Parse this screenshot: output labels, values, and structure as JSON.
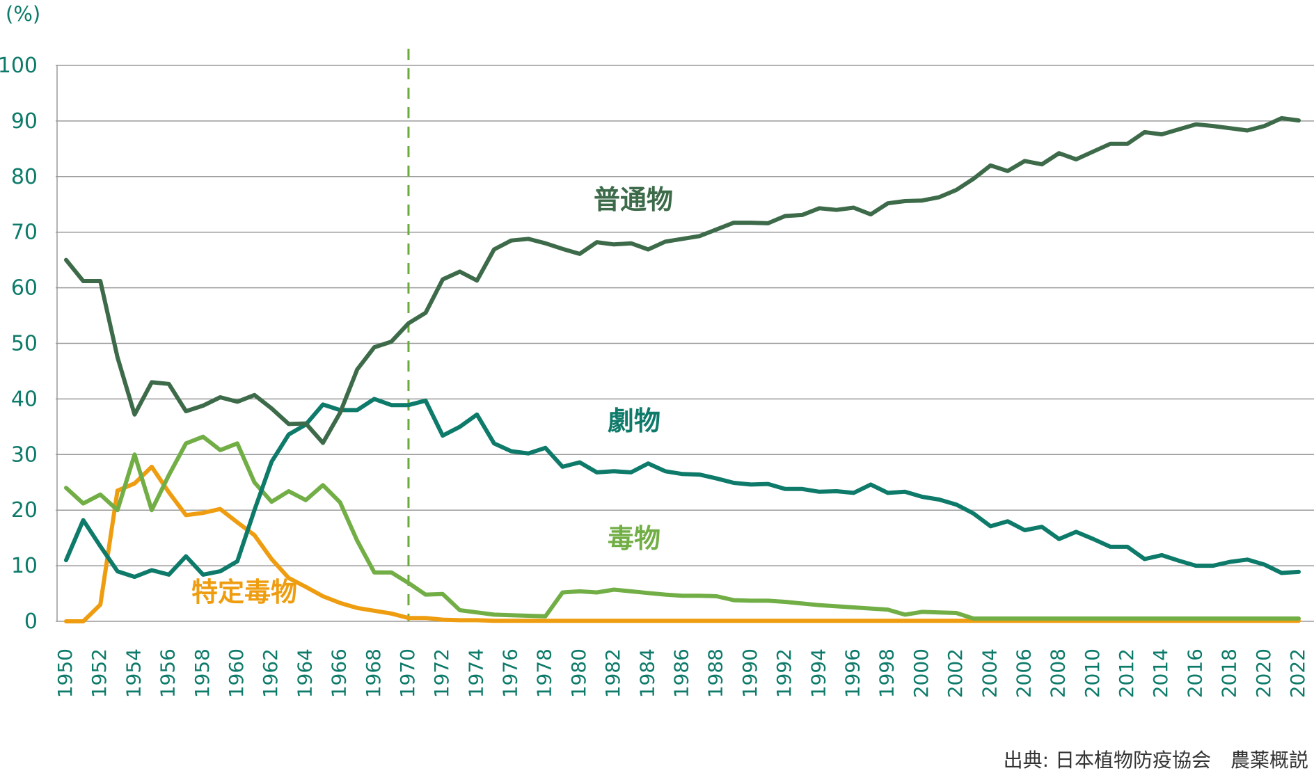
{
  "chart_data": {
    "type": "line",
    "unit_label": "(%)",
    "ylim": [
      0,
      100
    ],
    "yticks": [
      0,
      10,
      20,
      30,
      40,
      50,
      60,
      70,
      80,
      90,
      100
    ],
    "grid": "horizontal",
    "xticks": [
      1950,
      1952,
      1954,
      1956,
      1958,
      1960,
      1962,
      1964,
      1966,
      1968,
      1970,
      1972,
      1974,
      1976,
      1978,
      1980,
      1982,
      1984,
      1986,
      1988,
      1990,
      1992,
      1994,
      1996,
      1998,
      2000,
      2002,
      2004,
      2006,
      2008,
      2010,
      2012,
      2014,
      2016,
      2018,
      2020,
      2022
    ],
    "reference_line": {
      "x": 1970,
      "style": "dashed",
      "color": "#6aaa3a"
    },
    "x": [
      1950,
      1951,
      1952,
      1953,
      1954,
      1955,
      1956,
      1957,
      1958,
      1959,
      1960,
      1961,
      1962,
      1963,
      1964,
      1965,
      1966,
      1967,
      1968,
      1969,
      1970,
      1971,
      1972,
      1973,
      1974,
      1975,
      1976,
      1977,
      1978,
      1979,
      1980,
      1981,
      1982,
      1983,
      1984,
      1985,
      1986,
      1987,
      1988,
      1989,
      1990,
      1991,
      1992,
      1993,
      1994,
      1995,
      1996,
      1997,
      1998,
      1999,
      2000,
      2001,
      2002,
      2003,
      2004,
      2005,
      2006,
      2007,
      2008,
      2009,
      2010,
      2011,
      2012,
      2013,
      2014,
      2015,
      2016,
      2017,
      2018,
      2019,
      2020,
      2021,
      2022
    ],
    "series": [
      {
        "name": "普通物",
        "color": "#3d6b4a",
        "values": [
          65,
          61.2,
          61.2,
          47.5,
          37.2,
          43,
          42.7,
          37.8,
          38.8,
          40.3,
          39.5,
          40.7,
          38.3,
          35.5,
          35.6,
          32.1,
          37.5,
          45.3,
          49.3,
          50.3,
          53.6,
          55.5,
          61.5,
          62.9,
          61.3,
          66.9,
          68.5,
          68.8,
          68,
          67,
          66.1,
          68.2,
          67.8,
          68,
          66.9,
          68.3,
          68.8,
          69.3,
          70.5,
          71.7,
          71.7,
          71.6,
          72.9,
          73.1,
          74.3,
          74,
          74.4,
          73.2,
          75.2,
          75.6,
          75.7,
          76.3,
          77.6,
          79.6,
          82,
          81,
          82.8,
          82.2,
          84.2,
          83.1,
          84.5,
          85.9,
          85.9,
          88,
          87.6,
          88.5,
          89.4,
          89.1,
          88.7,
          88.3,
          89.1,
          90.5,
          90.1
        ]
      },
      {
        "name": "劇物",
        "color": "#0d7a6a",
        "values": [
          11,
          18.2,
          13.5,
          9,
          8,
          9.2,
          8.4,
          11.7,
          8.4,
          9,
          10.8,
          20,
          28.7,
          33.6,
          35.4,
          39,
          38,
          38,
          40,
          38.9,
          38.9,
          39.7,
          33.4,
          35,
          37.2,
          32,
          30.6,
          30.2,
          31.2,
          27.8,
          28.6,
          26.8,
          27,
          26.8,
          28.4,
          27,
          26.5,
          26.4,
          25.7,
          24.9,
          24.6,
          24.7,
          23.8,
          23.8,
          23.3,
          23.4,
          23.1,
          24.6,
          23.1,
          23.3,
          22.4,
          21.9,
          21,
          19.4,
          17.1,
          18,
          16.4,
          17,
          14.8,
          16.1,
          14.8,
          13.4,
          13.4,
          11.2,
          11.9,
          10.9,
          10,
          10,
          10.7,
          11.1,
          10.2,
          8.7,
          8.9
        ]
      },
      {
        "name": "毒物",
        "color": "#72ae46",
        "values": [
          24,
          21.2,
          22.8,
          20,
          30,
          20,
          26.3,
          32,
          33.2,
          30.8,
          32,
          25,
          21.5,
          23.4,
          21.8,
          24.5,
          21.4,
          14.5,
          8.8,
          8.8,
          6.9,
          4.8,
          4.9,
          2,
          1.6,
          1.2,
          1.1,
          1,
          0.9,
          5.2,
          5.4,
          5.2,
          5.7,
          5.4,
          5.1,
          4.8,
          4.6,
          4.6,
          4.5,
          3.8,
          3.7,
          3.7,
          3.5,
          3.2,
          2.9,
          2.7,
          2.5,
          2.3,
          2.1,
          1.2,
          1.7,
          1.6,
          1.5,
          0.5,
          0.5,
          0.5,
          0.5,
          0.5,
          0.5,
          0.5,
          0.5,
          0.5,
          0.5,
          0.5,
          0.5,
          0.5,
          0.5,
          0.5,
          0.5,
          0.5,
          0.5,
          0.5,
          0.5
        ]
      },
      {
        "name": "特定毒物",
        "color": "#ef9d10",
        "values": [
          0,
          0,
          3,
          23.5,
          24.8,
          27.8,
          23.2,
          19.1,
          19.5,
          20.2,
          17.8,
          15.5,
          11.2,
          7.8,
          6.2,
          4.5,
          3.3,
          2.4,
          1.9,
          1.4,
          0.6,
          0.6,
          0.3,
          0.2,
          0.2,
          0.1,
          0.1,
          0.1,
          0.1,
          0.1,
          0.1,
          0.1,
          0.1,
          0.1,
          0.1,
          0.1,
          0.1,
          0.1,
          0.1,
          0.1,
          0.1,
          0.1,
          0.1,
          0.1,
          0.1,
          0.1,
          0.1,
          0.1,
          0.1,
          0.1,
          0.1,
          0.1,
          0.1,
          0.1,
          0.1,
          0.1,
          0.1,
          0.1,
          0.1,
          0.1,
          0.1,
          0.1,
          0.1,
          0.1,
          0.1,
          0.1,
          0.1,
          0.1,
          0.1,
          0.1,
          0.1,
          0.1,
          0.1
        ]
      }
    ],
    "source": "出典: 日本植物防疫協会　農薬概説"
  }
}
